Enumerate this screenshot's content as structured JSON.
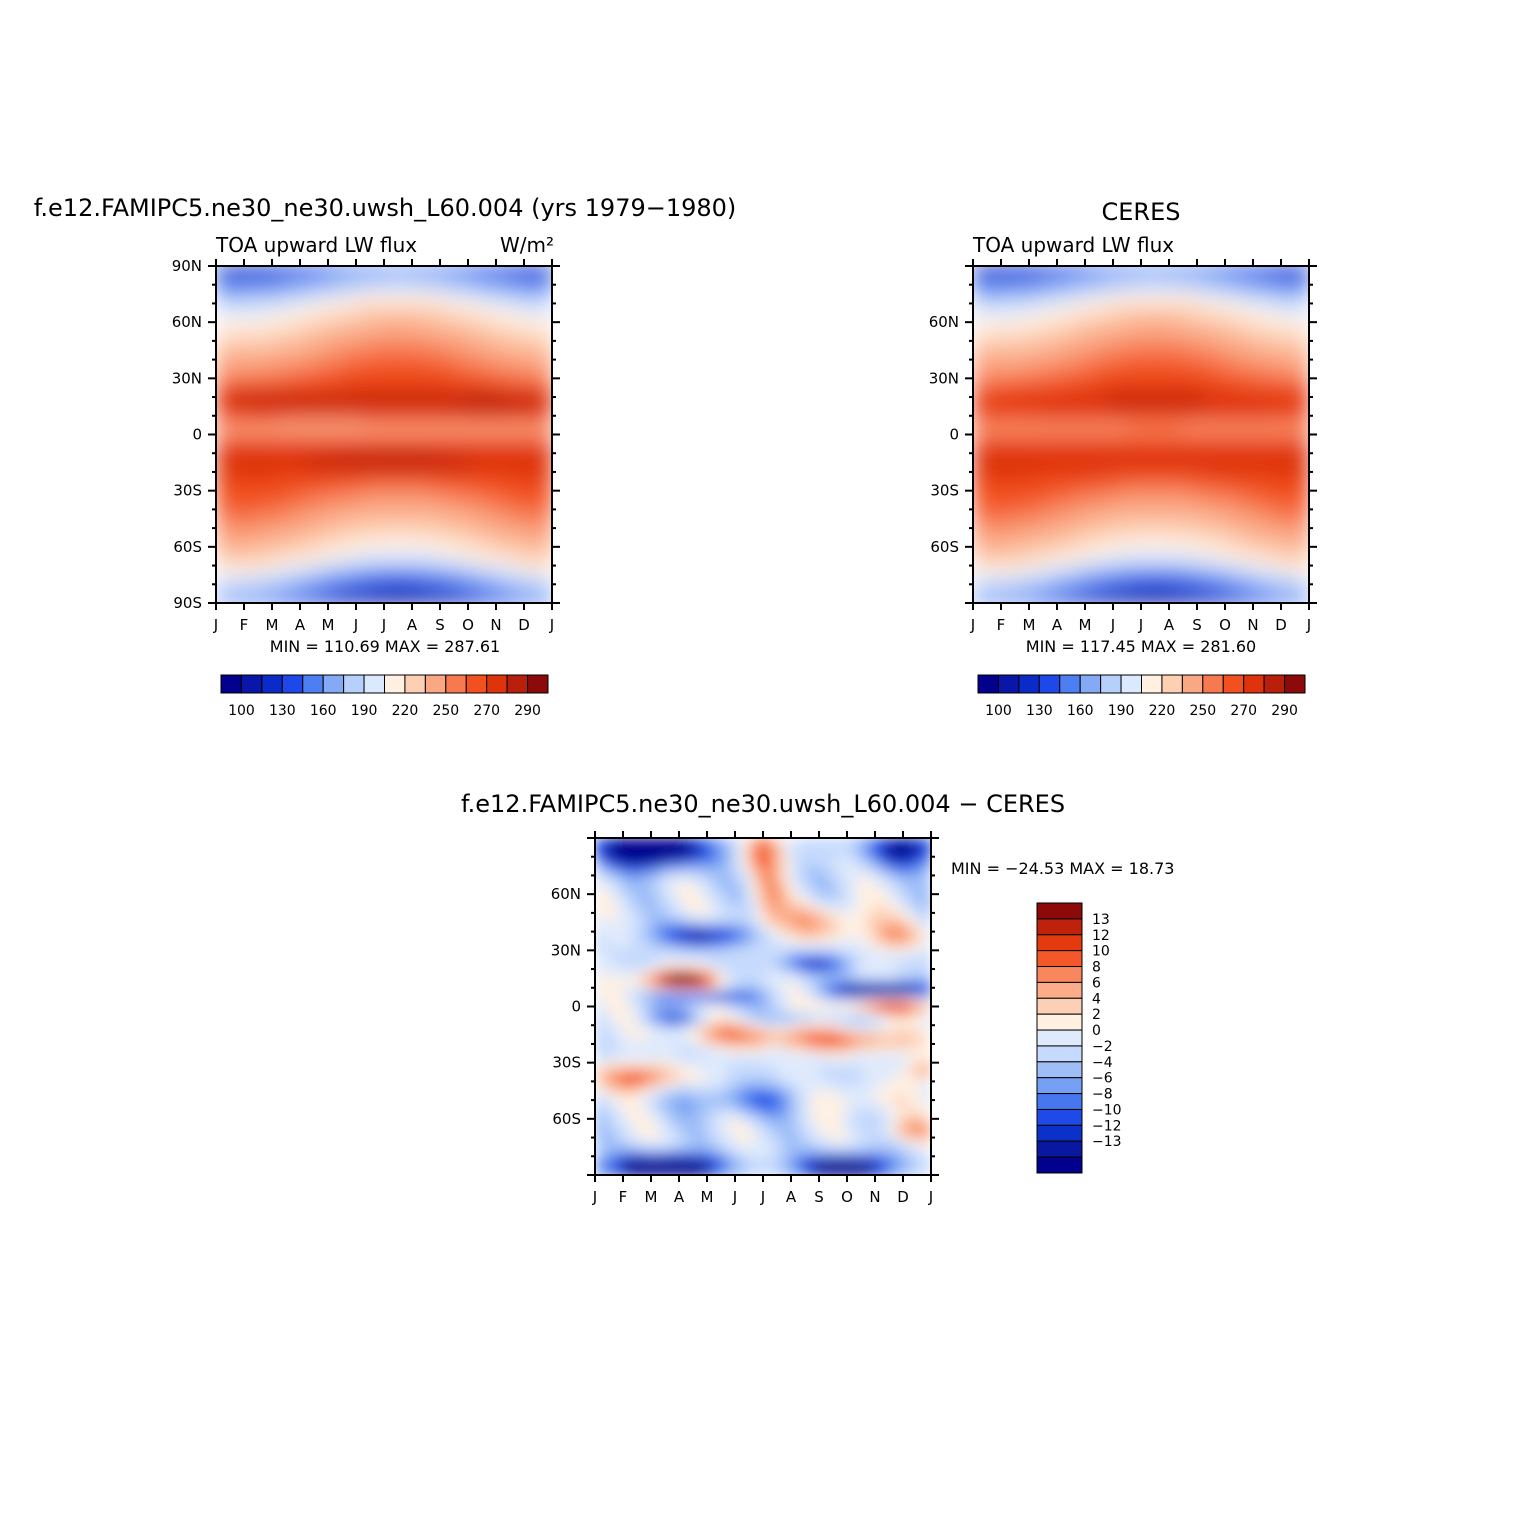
{
  "palettes": {
    "abs": [
      "#02008c",
      "#0a16a8",
      "#0b2bc9",
      "#1e48e7",
      "#4d7ff2",
      "#84aaf5",
      "#b7cffb",
      "#dbe9fe",
      "#fff0e2",
      "#fdd0b4",
      "#faa784",
      "#f7794f",
      "#f2501f",
      "#df340b",
      "#b8200b",
      "#8c0a0a"
    ],
    "diff": [
      "#02008c",
      "#0a18a0",
      "#0c31c9",
      "#1f4ae8",
      "#4677ee",
      "#76a0f3",
      "#9fbef8",
      "#c6dafd",
      "#dfeafc",
      "#fff0e2",
      "#fdcfb6",
      "#fbad8a",
      "#f8875d",
      "#f4572a",
      "#e33a10",
      "#bf220b",
      "#8c0a0a"
    ]
  },
  "axes": {
    "months": [
      "J",
      "F",
      "M",
      "A",
      "M",
      "J",
      "J",
      "A",
      "S",
      "O",
      "N",
      "D",
      "J"
    ]
  },
  "chart_data": [
    {
      "type": "heatmap",
      "title": "f.e12.FAMIPC5.ne30_ne30.uwsh_L60.004 (yrs 1979−1980)",
      "left_label": "TOA upward LW flux",
      "right_label": "W/m²",
      "x_ticklabels": [
        "J",
        "F",
        "M",
        "A",
        "M",
        "J",
        "J",
        "A",
        "S",
        "O",
        "N",
        "D",
        "J"
      ],
      "y_ticklabels": [
        "90N",
        "60N",
        "30N",
        "0",
        "30S",
        "60S",
        "90S"
      ],
      "ylim": [
        -90,
        90
      ],
      "stats": "MIN = 110.69 MAX = 287.61",
      "min": 110.69,
      "max": 287.61,
      "colorbar_labels": [
        "100",
        "130",
        "160",
        "190",
        "220",
        "250",
        "270",
        "290"
      ],
      "colorbar_boxes": 16
    },
    {
      "type": "heatmap",
      "title": "CERES",
      "left_label": "TOA upward LW flux",
      "x_ticklabels": [
        "J",
        "F",
        "M",
        "A",
        "M",
        "J",
        "J",
        "A",
        "S",
        "O",
        "N",
        "D",
        "J"
      ],
      "y_ticklabels": [
        "60N",
        "30N",
        "0",
        "30S",
        "60S"
      ],
      "ylim": [
        -90,
        90
      ],
      "stats": "MIN = 117.45 MAX = 281.60",
      "min": 117.45,
      "max": 281.6,
      "colorbar_labels": [
        "100",
        "130",
        "160",
        "190",
        "220",
        "250",
        "270",
        "290"
      ],
      "colorbar_boxes": 16
    },
    {
      "type": "heatmap",
      "title": "f.e12.FAMIPC5.ne30_ne30.uwsh_L60.004 − CERES",
      "x_ticklabels": [
        "J",
        "F",
        "M",
        "A",
        "M",
        "J",
        "J",
        "A",
        "S",
        "O",
        "N",
        "D",
        "J"
      ],
      "y_ticklabels": [
        "60N",
        "30N",
        "0",
        "30S",
        "60S"
      ],
      "ylim": [
        -90,
        90
      ],
      "stats": "MIN = −24.53 MAX = 18.73",
      "min": -24.53,
      "max": 18.73,
      "colorbar_labels": [
        "13",
        "12",
        "10",
        "8",
        "6",
        "4",
        "2",
        "0",
        "−2",
        "−4",
        "−6",
        "−8",
        "−10",
        "−12",
        "−13"
      ],
      "colorbar_boxes": 17
    }
  ]
}
